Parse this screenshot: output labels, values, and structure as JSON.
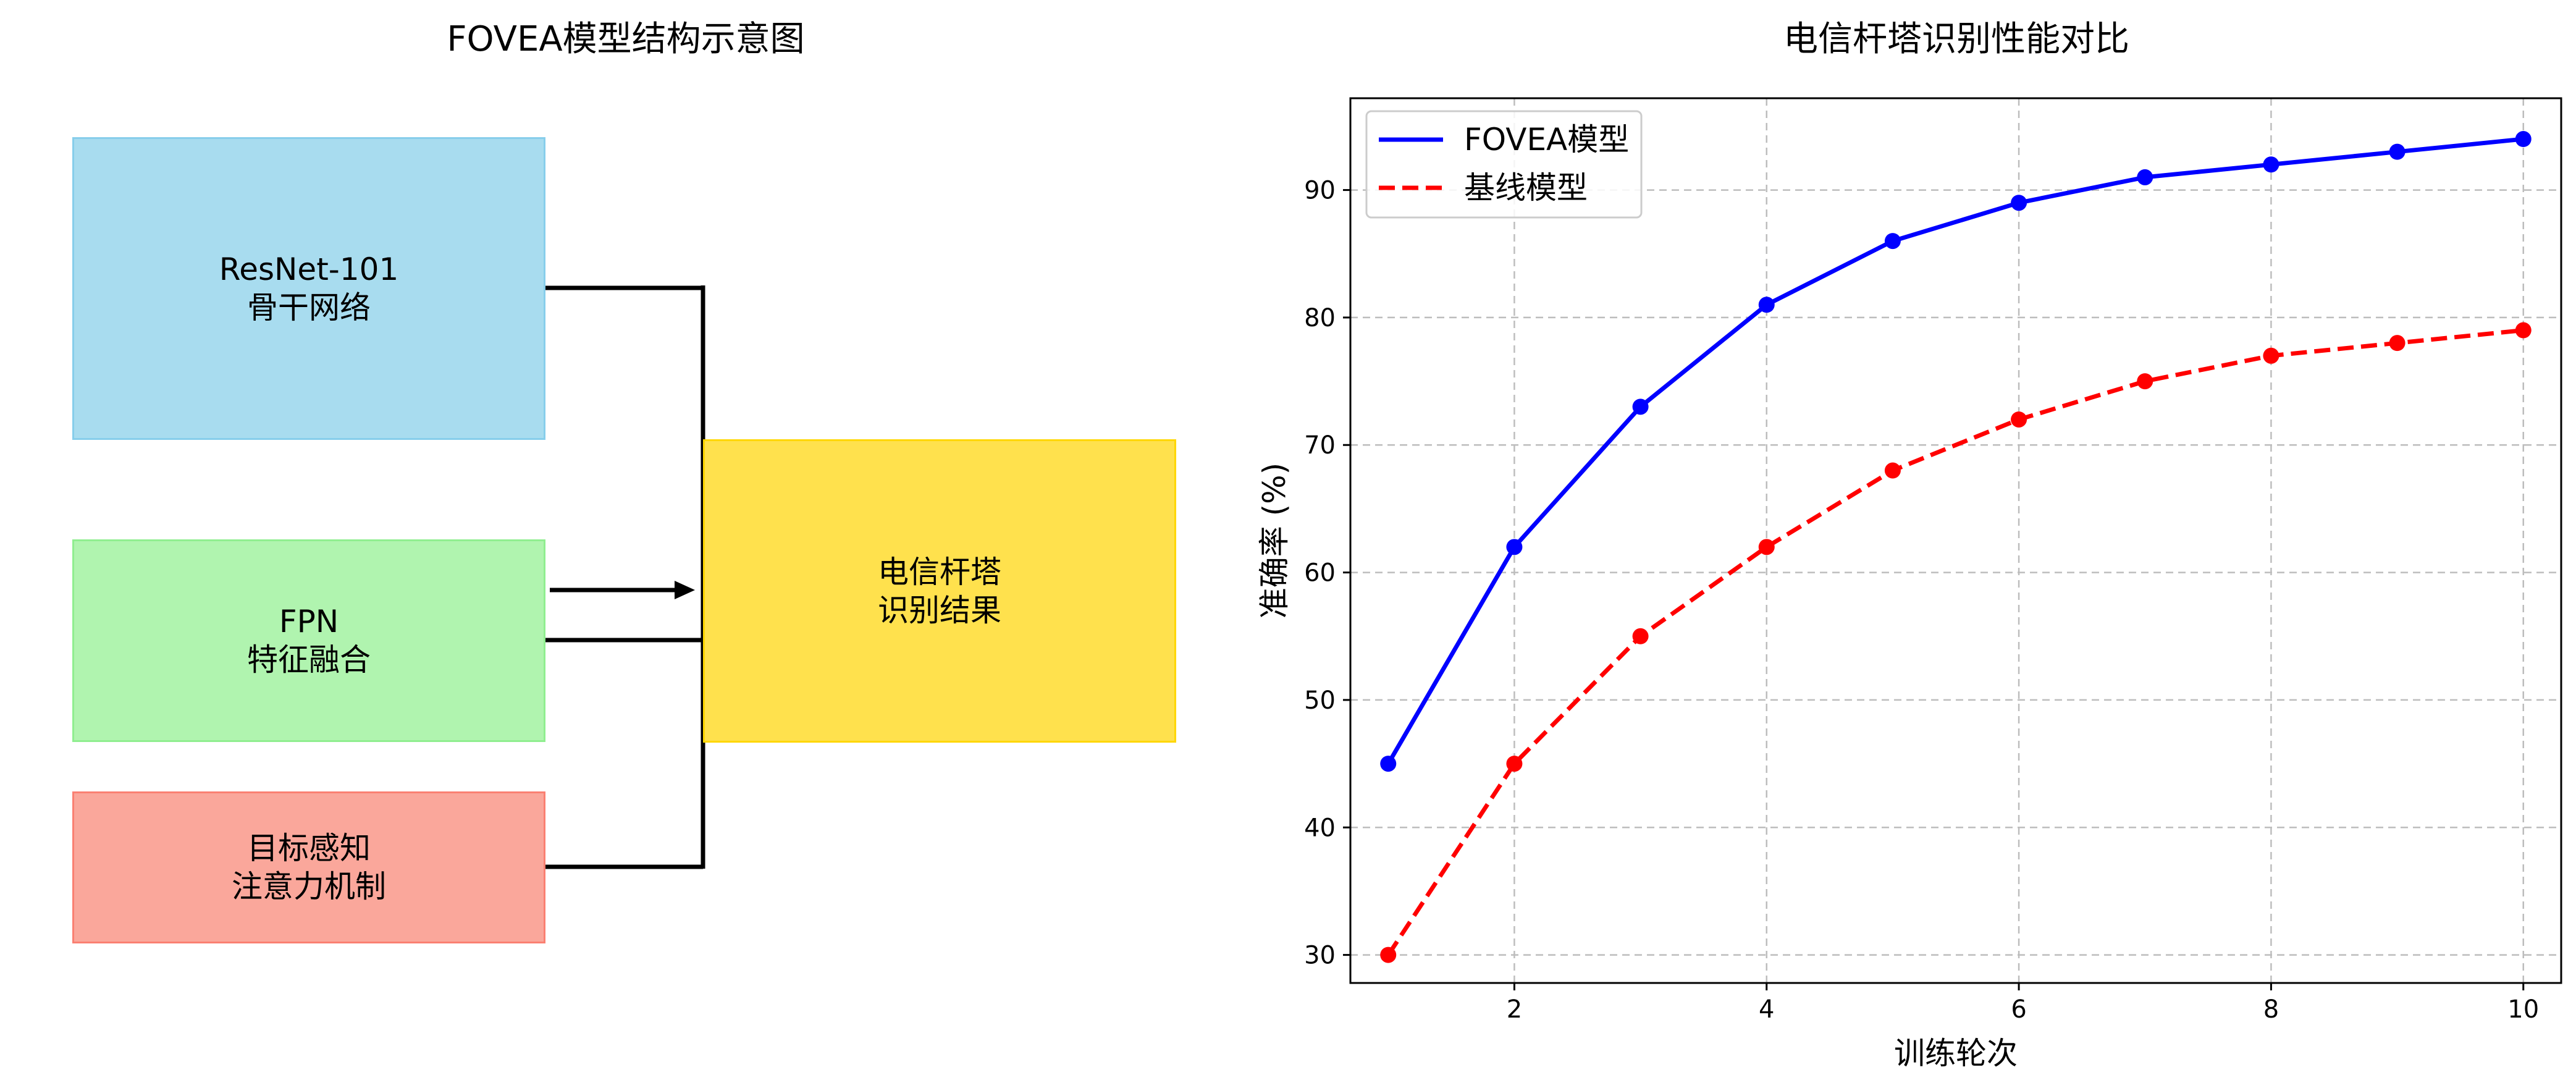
{
  "diagram": {
    "title": "FOVEA模型结构示意图",
    "boxes": [
      {
        "id": "backbone",
        "line1": "ResNet-101",
        "line2": "骨干网络",
        "fill": "#a8dcef",
        "stroke": "#87ceeb"
      },
      {
        "id": "fpn",
        "line1": "FPN",
        "line2": "特征融合",
        "fill": "#b0f4af",
        "stroke": "#90ee90"
      },
      {
        "id": "attention",
        "line1": "目标感知",
        "line2": "注意力机制",
        "fill": "#faa79b",
        "stroke": "#fa8072"
      },
      {
        "id": "result",
        "line1": "电信杆塔",
        "line2": "识别结果",
        "fill": "#ffe14d",
        "stroke": "#ffd700"
      }
    ]
  },
  "chart_data": {
    "type": "line",
    "title": "电信杆塔识别性能对比",
    "xlabel": "训练轮次",
    "ylabel": "准确率 (%)",
    "x": [
      1,
      2,
      3,
      4,
      5,
      6,
      7,
      8,
      9,
      10
    ],
    "xlim": [
      0.7,
      10.3
    ],
    "ylim": [
      27.8,
      97.2
    ],
    "xticks": [
      2,
      4,
      6,
      8,
      10
    ],
    "yticks": [
      30,
      40,
      50,
      60,
      70,
      80,
      90
    ],
    "grid": true,
    "legend_position": "top-left",
    "series": [
      {
        "name": "FOVEA模型",
        "values": [
          45,
          62,
          73,
          81,
          86,
          89,
          91,
          92,
          93,
          94
        ],
        "color": "#0000ff",
        "style": "solid"
      },
      {
        "name": "基线模型",
        "values": [
          30,
          45,
          55,
          62,
          68,
          72,
          75,
          77,
          78,
          79
        ],
        "color": "#ff0000",
        "style": "dashed"
      }
    ]
  }
}
